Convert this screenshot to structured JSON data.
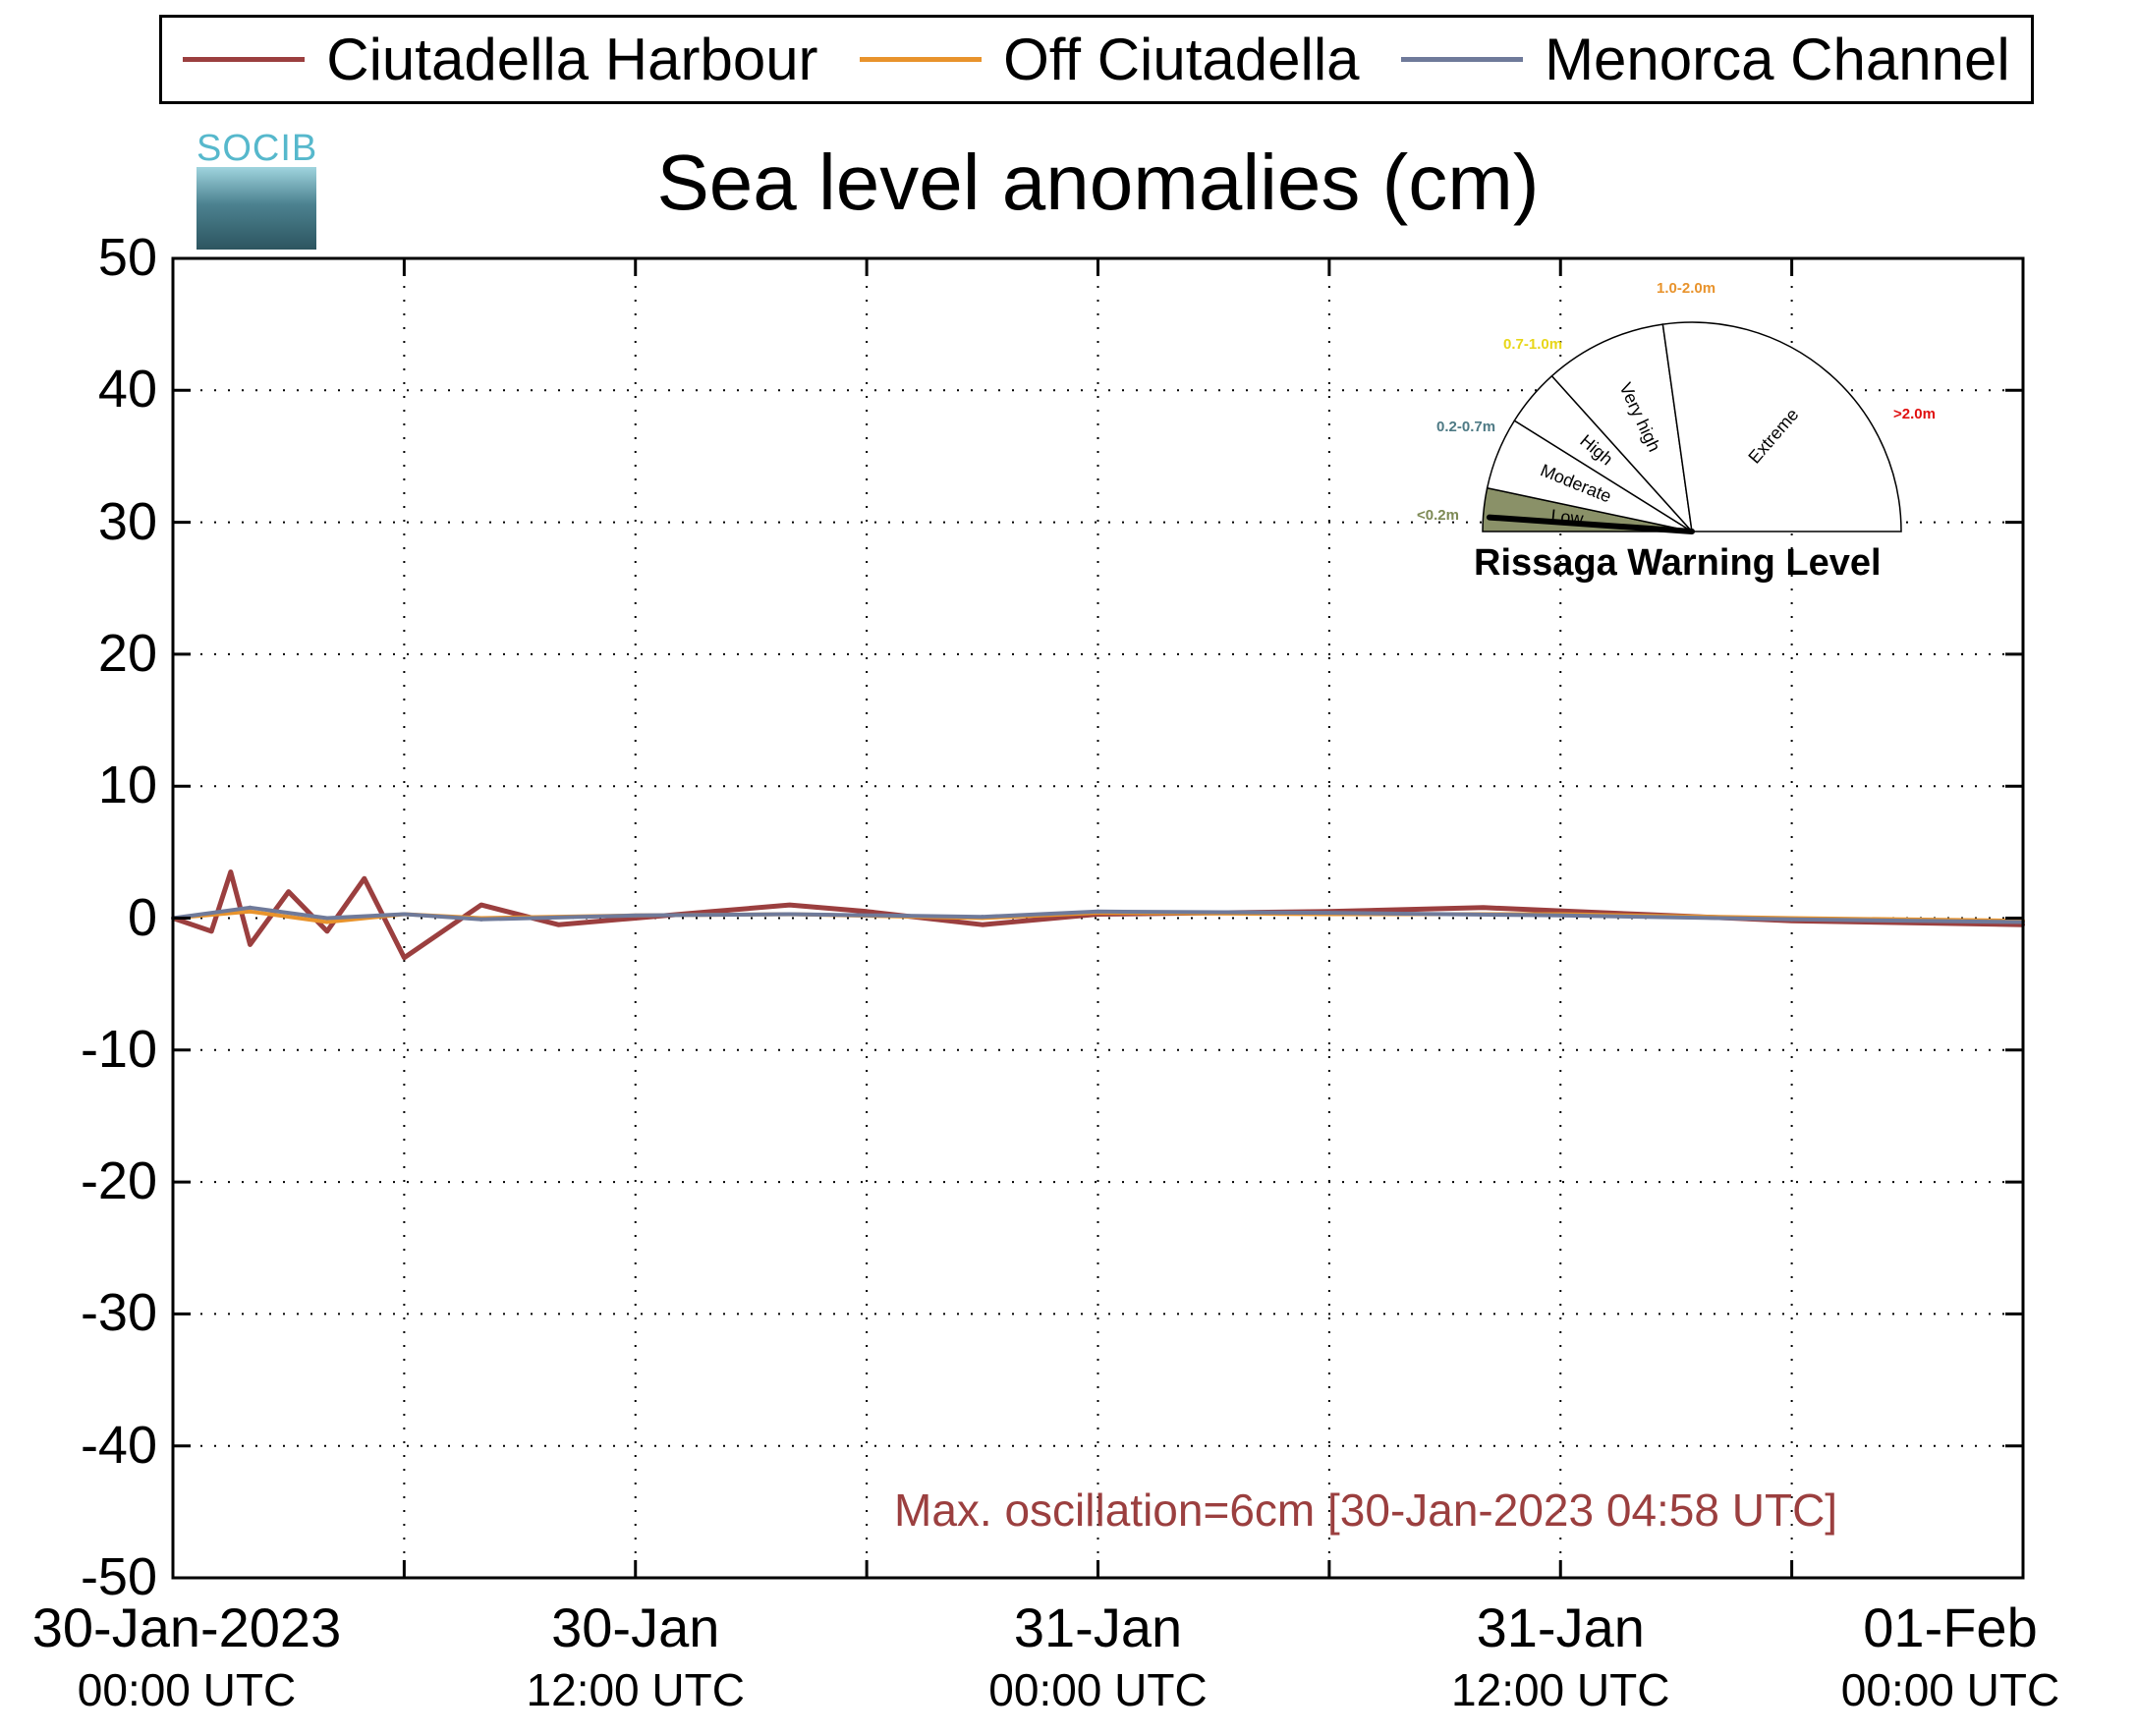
{
  "chart_data": {
    "type": "line",
    "title": "Sea level anomalies (cm)",
    "xlabel": "",
    "ylabel": "",
    "ylim": [
      -50,
      50
    ],
    "yticks": [
      "50",
      "40",
      "30",
      "20",
      "10",
      "0",
      "-10",
      "-20",
      "-30",
      "-40",
      "-50"
    ],
    "xlim": [
      "30-Jan-2023 00:00",
      "01-Feb-2023 00:00"
    ],
    "xticks": [
      {
        "line1": "30-Jan-2023",
        "line2": "00:00 UTC"
      },
      {
        "line1": "30-Jan",
        "line2": "12:00 UTC"
      },
      {
        "line1": "31-Jan",
        "line2": "00:00 UTC"
      },
      {
        "line1": "31-Jan",
        "line2": "12:00 UTC"
      },
      {
        "line1": "01-Feb",
        "line2": "00:00 UTC"
      }
    ],
    "grid": true,
    "legend_position": "top",
    "series": [
      {
        "name": "Ciutadella Harbour",
        "color": "#9b3f3f",
        "x": [
          "30-Jan-2023 00:00",
          "30-Jan-2023 01:00",
          "30-Jan-2023 01:30",
          "30-Jan-2023 02:00",
          "30-Jan-2023 03:00",
          "30-Jan-2023 04:00",
          "30-Jan-2023 04:58",
          "30-Jan-2023 06:00",
          "30-Jan-2023 08:00",
          "30-Jan-2023 10:00",
          "30-Jan-2023 12:00",
          "30-Jan-2023 14:00",
          "30-Jan-2023 16:00",
          "30-Jan-2023 18:00",
          "30-Jan-2023 21:00",
          "31-Jan-2023 00:00",
          "31-Jan-2023 06:00",
          "31-Jan-2023 10:00",
          "31-Jan-2023 14:00",
          "31-Jan-2023 18:00",
          "01-Feb-2023 00:00"
        ],
        "values": [
          0,
          -1,
          3.5,
          -2,
          2,
          -1,
          3,
          -3,
          1,
          -0.5,
          0,
          0.5,
          1,
          0.5,
          -0.5,
          0.3,
          0.5,
          0.8,
          0.3,
          -0.2,
          -0.5
        ]
      },
      {
        "name": "Off Ciutadella",
        "color": "#e8932c",
        "x": [
          "30-Jan-2023 00:00",
          "30-Jan-2023 02:00",
          "30-Jan-2023 04:00",
          "30-Jan-2023 06:00",
          "30-Jan-2023 08:00",
          "30-Jan-2023 12:00",
          "30-Jan-2023 16:00",
          "30-Jan-2023 21:00",
          "31-Jan-2023 00:00",
          "31-Jan-2023 06:00",
          "31-Jan-2023 12:00",
          "31-Jan-2023 18:00",
          "01-Feb-2023 00:00"
        ],
        "values": [
          0,
          0.5,
          -0.3,
          0.3,
          0,
          0.2,
          0.3,
          0,
          0.4,
          0.3,
          0.3,
          0,
          -0.2
        ]
      },
      {
        "name": "Menorca Channel",
        "color": "#6f7a9a",
        "x": [
          "30-Jan-2023 00:00",
          "30-Jan-2023 02:00",
          "30-Jan-2023 04:00",
          "30-Jan-2023 06:00",
          "30-Jan-2023 08:00",
          "30-Jan-2023 12:00",
          "30-Jan-2023 16:00",
          "30-Jan-2023 21:00",
          "31-Jan-2023 00:00",
          "31-Jan-2023 06:00",
          "31-Jan-2023 12:00",
          "31-Jan-2023 18:00",
          "01-Feb-2023 00:00"
        ],
        "values": [
          0,
          0.8,
          0,
          0.3,
          -0.1,
          0.2,
          0.3,
          0.1,
          0.5,
          0.4,
          0.2,
          -0.1,
          -0.3
        ]
      }
    ],
    "annotation": "Max. oscillation=6cm [30-Jan-2023 04:58 UTC]"
  },
  "logo": {
    "text": "SOCIB"
  },
  "gauge": {
    "title": "Rissaga Warning Level",
    "current_level": "Low",
    "segments": [
      {
        "label": "Low",
        "range": "<0.2m",
        "color": "#8a9168",
        "range_color": "#7d8a55"
      },
      {
        "label": "Moderate",
        "range": "0.2-0.7m",
        "color": "#ffffff",
        "range_color": "#4e7a85"
      },
      {
        "label": "High",
        "range": "0.7-1.0m",
        "color": "#ffffff",
        "range_color": "#e8d619"
      },
      {
        "label": "Very high",
        "range": "1.0-2.0m",
        "color": "#ffffff",
        "range_color": "#e8932c"
      },
      {
        "label": "Extreme",
        "range": ">2.0m",
        "color": "#ffffff",
        "range_color": "#e01010"
      }
    ]
  }
}
